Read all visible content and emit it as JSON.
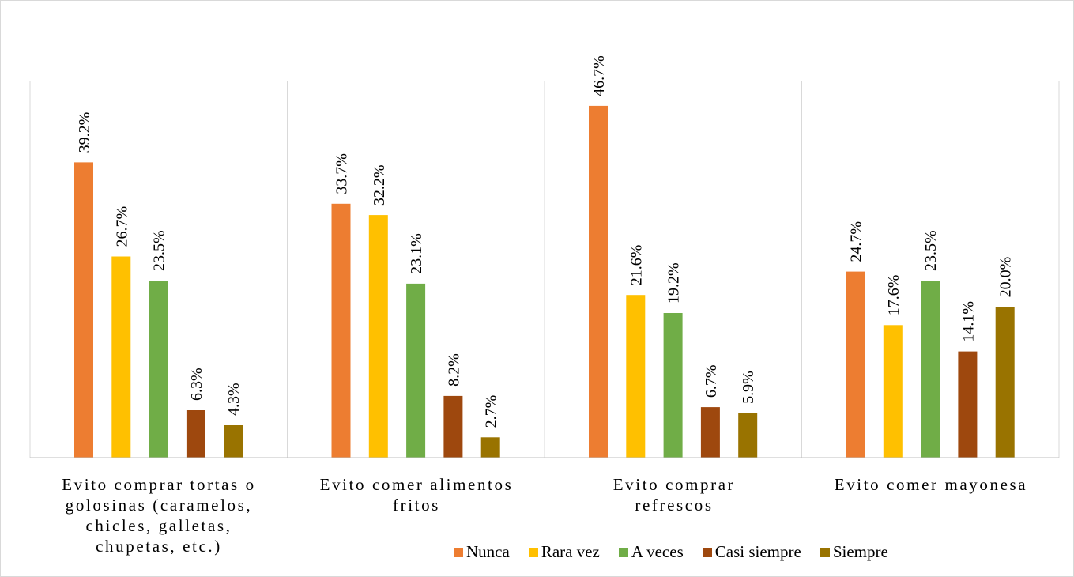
{
  "chart_data": {
    "type": "bar",
    "categories": [
      "Evito comprar tortas o golosinas (caramelos, chicles, galletas, chupetas, etc.)",
      "Evito comer alimentos fritos",
      "Evito comprar refrescos",
      "Evito comer mayonesa"
    ],
    "category_lines": [
      [
        "Evito comprar tortas o",
        "golosinas (caramelos,",
        "chicles, galletas,",
        "chupetas, etc.)"
      ],
      [
        "Evito comer alimentos",
        "fritos"
      ],
      [
        "Evito comprar",
        "refrescos"
      ],
      [
        "Evito comer mayonesa"
      ]
    ],
    "series": [
      {
        "name": "Nunca",
        "color": "#ED7D31",
        "values": [
          39.2,
          33.7,
          46.7,
          24.7
        ],
        "labels": [
          "39.2%",
          "33.7%",
          "46.7%",
          "24.7%"
        ]
      },
      {
        "name": "Rara vez",
        "color": "#FFC000",
        "values": [
          26.7,
          32.2,
          21.6,
          17.6
        ],
        "labels": [
          "26.7%",
          "32.2%",
          "21.6%",
          "17.6%"
        ]
      },
      {
        "name": "A veces",
        "color": "#70AD47",
        "values": [
          23.5,
          23.1,
          19.2,
          23.5
        ],
        "labels": [
          "23.5%",
          "23.1%",
          "19.2%",
          "23.5%"
        ]
      },
      {
        "name": "Casi siempre",
        "color": "#9E480E",
        "values": [
          6.3,
          8.2,
          6.7,
          14.1
        ],
        "labels": [
          "6.3%",
          "8.2%",
          "6.7%",
          "14.1%"
        ]
      },
      {
        "name": "Siempre",
        "color": "#997300",
        "values": [
          4.3,
          2.7,
          5.9,
          20.0
        ],
        "labels": [
          "4.3%",
          "2.7%",
          "5.9%",
          "20.0%"
        ]
      }
    ],
    "ylim": [
      0,
      50
    ],
    "legend_position": "bottom-right",
    "grid": false
  }
}
